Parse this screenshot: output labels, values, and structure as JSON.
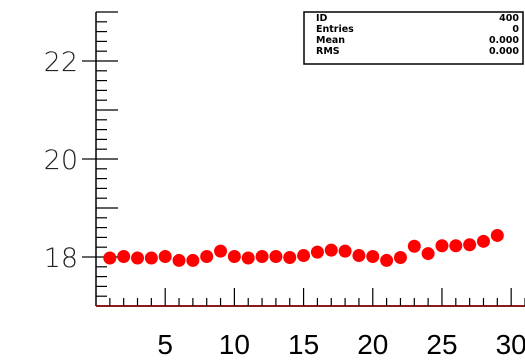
{
  "stats_box": {
    "rows": [
      {
        "label": "ID",
        "value": "400"
      },
      {
        "label": "Entries",
        "value": "0"
      },
      {
        "label": "Mean",
        "value": "0.000"
      },
      {
        "label": "RMS",
        "value": "0.000"
      }
    ]
  },
  "chart_data": {
    "type": "scatter",
    "title": "",
    "xlabel": "",
    "ylabel": "",
    "xlim": [
      0,
      31
    ],
    "ylim": [
      17,
      23
    ],
    "x_ticks": [
      5,
      10,
      15,
      20,
      25,
      30
    ],
    "y_ticks": [
      18,
      20,
      22
    ],
    "grid": false,
    "marker_color": "#ff0000",
    "axis_color": "#000000",
    "baseline_color": "#8b1a1a",
    "series": [
      {
        "x": [
          1,
          2,
          3,
          4,
          5,
          6,
          7,
          8,
          9,
          10,
          11,
          12,
          13,
          14,
          15,
          16,
          17,
          18,
          19,
          20,
          21,
          22,
          23,
          24,
          25,
          26,
          27,
          28,
          29
        ],
        "values": [
          17.98,
          18.01,
          17.98,
          17.98,
          18.01,
          17.93,
          17.93,
          18.01,
          18.12,
          18.01,
          17.98,
          18.01,
          18.01,
          17.99,
          18.03,
          18.1,
          18.14,
          18.12,
          18.03,
          18.01,
          17.93,
          17.99,
          18.22,
          18.07,
          18.23,
          18.23,
          18.25,
          18.32,
          18.44
        ]
      }
    ]
  }
}
